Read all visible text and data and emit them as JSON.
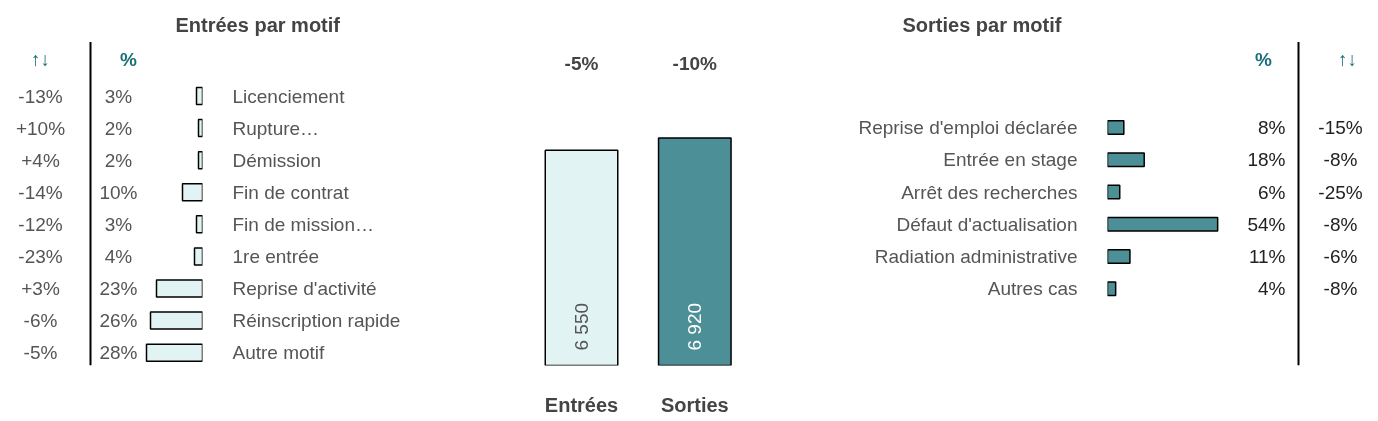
{
  "chart_data": [
    {
      "type": "bar",
      "orientation": "horizontal",
      "title": "Entrées par motif",
      "categories": [
        "Licenciement",
        "Rupture…",
        "Démission",
        "Fin de contrat",
        "Fin de mission…",
        "1re entrée",
        "Reprise d'activité",
        "Réinscription rapide",
        "Autre motif"
      ],
      "values": [
        3,
        2,
        2,
        10,
        3,
        4,
        23,
        26,
        28
      ],
      "value_labels": [
        "3%",
        "2%",
        "2%",
        "10%",
        "3%",
        "4%",
        "23%",
        "26%",
        "28%"
      ],
      "color": "#e1f3f3",
      "tick_labels": "y",
      "annotations": [
        "↑↓",
        "%",
        "-13%",
        "+10%",
        "+4%",
        "-14%",
        "-12%",
        "-23%",
        "+3%",
        "-6%",
        "-5%"
      ]
    },
    {
      "type": "bar",
      "categories": [
        "Entrées",
        "Sorties"
      ],
      "values": [
        6550,
        6920
      ],
      "value_labels": [
        "6 550",
        "6 920"
      ],
      "colors": [
        "#e1f3f3",
        "#4c8f96"
      ],
      "tick_labels": "x",
      "annotations": [
        "-5%",
        "-10%"
      ]
    },
    {
      "type": "bar",
      "orientation": "horizontal",
      "title": "Sorties par motif",
      "categories": [
        "Reprise d'emploi déclarée",
        "Entrée en stage",
        "Arrêt des recherches",
        "Défaut d'actualisation",
        "Radiation administrative",
        "Autres cas"
      ],
      "values": [
        8,
        18,
        6,
        54,
        11,
        4
      ],
      "value_labels": [
        "8%",
        "18%",
        "6%",
        "54%",
        "11%",
        "4%"
      ],
      "color": "#4c8f96",
      "tick_labels": "y",
      "annotations": [
        "%",
        "↑↓",
        "-15%",
        "-8%",
        "-25%",
        "-8%",
        "-6%",
        "-8%"
      ]
    }
  ]
}
